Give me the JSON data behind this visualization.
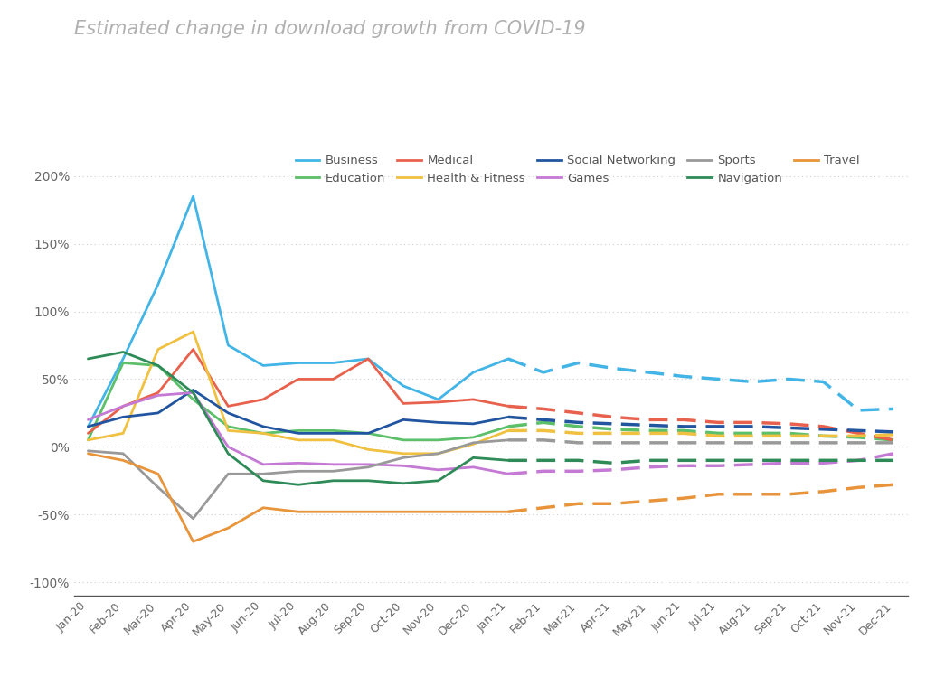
{
  "title": "Estimated change in download growth from COVID-19",
  "background_color": "#ffffff",
  "title_color": "#b0b0b0",
  "title_fontsize": 15,
  "x_labels": [
    "Jan-20",
    "Feb-20",
    "Mar-20",
    "Apr-20",
    "May-20",
    "Jun-20",
    "Jul-20",
    "Aug-20",
    "Sep-20",
    "Oct-20",
    "Nov-20",
    "Dec-20",
    "Jan-21",
    "Feb-21",
    "Mar-21",
    "Apr-21",
    "May-21",
    "Jun-21",
    "Jul-21",
    "Aug-21",
    "Sep-21",
    "Oct-21",
    "Nov-21",
    "Dec-21"
  ],
  "solid_count": 12,
  "series": [
    {
      "name": "Business",
      "color": "#42b4e6",
      "values": [
        15,
        65,
        120,
        185,
        75,
        60,
        62,
        62,
        65,
        45,
        35,
        55,
        65,
        55,
        62,
        58,
        55,
        52,
        50,
        48,
        50,
        48,
        27,
        28
      ]
    },
    {
      "name": "Education",
      "color": "#5cbf6a",
      "values": [
        5,
        62,
        60,
        35,
        15,
        10,
        12,
        12,
        10,
        5,
        5,
        7,
        15,
        18,
        15,
        13,
        12,
        12,
        10,
        10,
        10,
        8,
        7,
        5
      ]
    },
    {
      "name": "Medical",
      "color": "#e8614d",
      "values": [
        10,
        30,
        40,
        72,
        30,
        35,
        50,
        50,
        65,
        32,
        33,
        35,
        30,
        28,
        25,
        22,
        20,
        20,
        18,
        18,
        17,
        15,
        10,
        5
      ]
    },
    {
      "name": "Health & Fitness",
      "color": "#f0c040",
      "values": [
        5,
        10,
        72,
        85,
        12,
        10,
        5,
        5,
        -2,
        -5,
        -5,
        2,
        12,
        12,
        10,
        10,
        10,
        10,
        8,
        8,
        8,
        8,
        8,
        9
      ]
    },
    {
      "name": "Social Networking",
      "color": "#2255a0",
      "values": [
        15,
        22,
        25,
        42,
        25,
        15,
        10,
        10,
        10,
        20,
        18,
        17,
        22,
        20,
        18,
        17,
        16,
        15,
        15,
        15,
        14,
        13,
        12,
        11
      ]
    },
    {
      "name": "Games",
      "color": "#c47ad4",
      "values": [
        20,
        30,
        38,
        40,
        0,
        -13,
        -12,
        -13,
        -13,
        -14,
        -17,
        -15,
        -20,
        -18,
        -18,
        -17,
        -15,
        -14,
        -14,
        -13,
        -12,
        -12,
        -10,
        -5
      ]
    },
    {
      "name": "Sports",
      "color": "#999999",
      "values": [
        -3,
        -5,
        -30,
        -53,
        -20,
        -20,
        -18,
        -18,
        -15,
        -8,
        -5,
        3,
        5,
        5,
        3,
        3,
        3,
        3,
        3,
        3,
        3,
        3,
        3,
        3
      ]
    },
    {
      "name": "Navigation",
      "color": "#2e8b57",
      "values": [
        65,
        70,
        60,
        40,
        -5,
        -25,
        -28,
        -25,
        -25,
        -27,
        -25,
        -8,
        -10,
        -10,
        -10,
        -12,
        -10,
        -10,
        -10,
        -10,
        -10,
        -10,
        -10,
        -10
      ]
    },
    {
      "name": "Travel",
      "color": "#e8943a",
      "values": [
        -5,
        -10,
        -20,
        -70,
        -60,
        -45,
        -48,
        -48,
        -48,
        -48,
        -48,
        -48,
        -48,
        -45,
        -42,
        -42,
        -40,
        -38,
        -35,
        -35,
        -35,
        -33,
        -30,
        -28
      ]
    }
  ],
  "yticks": [
    -100,
    -50,
    0,
    50,
    100,
    150,
    200
  ],
  "ylim": [
    -110,
    220
  ],
  "legend_row1": [
    "Business",
    "Education",
    "Medical",
    "Health & Fitness",
    "Social Networking"
  ],
  "legend_row2": [
    "Games",
    "Sports",
    "Navigation",
    "Travel"
  ]
}
